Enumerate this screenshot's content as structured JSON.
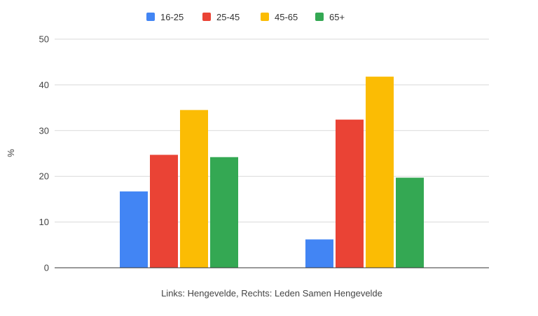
{
  "chart_data": {
    "type": "bar",
    "title": "",
    "xlabel": "Links: Hengevelde, Rechts: Leden Samen Hengevelde",
    "ylabel": "%",
    "ylim": [
      0,
      50
    ],
    "yticks": [
      0,
      10,
      20,
      30,
      40,
      50
    ],
    "grid": true,
    "legend_position": "top",
    "categories": [
      "",
      ""
    ],
    "series": [
      {
        "name": "16-25",
        "color": "#4285F4",
        "values": [
          16.7,
          6.2
        ]
      },
      {
        "name": "25-45",
        "color": "#EA4335",
        "values": [
          24.7,
          32.4
        ]
      },
      {
        "name": "45-65",
        "color": "#FBBC04",
        "values": [
          34.5,
          41.8
        ]
      },
      {
        "name": "65+",
        "color": "#34A853",
        "values": [
          24.2,
          19.7
        ]
      }
    ]
  }
}
